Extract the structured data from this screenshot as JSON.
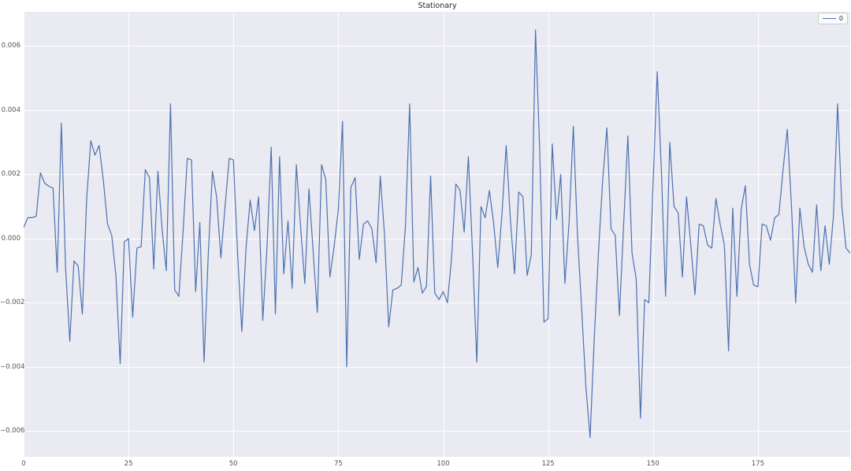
{
  "chart_data": {
    "type": "line",
    "title": "Stationary",
    "xlabel": "",
    "ylabel": "",
    "grid": true,
    "legend": {
      "position": "upper right",
      "entries": [
        {
          "label": "0",
          "color": "#4c72b0"
        }
      ]
    },
    "colors": {
      "figure_background": "#ffffff",
      "axes_background": "#eaeaf2",
      "grid_color": "#ffffff",
      "line_color": "#4c72b0",
      "title_color": "#262626",
      "tick_color": "#555555"
    },
    "xlim": [
      0,
      197
    ],
    "ylim": [
      -0.0068,
      0.007066
    ],
    "x_ticks": [
      0,
      25,
      50,
      75,
      100,
      125,
      150,
      175
    ],
    "y_ticks": [
      0.006,
      0.004,
      0.002,
      0.0,
      -0.002,
      -0.004,
      -0.006
    ],
    "y_tick_labels": [
      "0.006",
      "0.004",
      "0.002",
      "0.000",
      "−0.002",
      "−0.004",
      "−0.006"
    ],
    "x_start": 0,
    "series": [
      {
        "name": "0",
        "color": "#4c72b0",
        "values": [
          0.00035,
          0.00065,
          0.00065,
          0.0007,
          0.00205,
          0.00173,
          0.00163,
          0.00157,
          -0.00105,
          0.0036,
          -0.0009,
          -0.0032,
          -0.0007,
          -0.00085,
          -0.00235,
          0.0012,
          0.00305,
          0.0026,
          0.0029,
          0.0018,
          0.00045,
          0.0001,
          -0.00115,
          -0.0039,
          -0.0001,
          0.0,
          -0.00245,
          -0.0003,
          -0.00025,
          0.00215,
          0.0019,
          -0.00095,
          0.0021,
          0.0003,
          -0.001,
          0.0042,
          -0.0016,
          -0.0018,
          0.0002,
          0.0025,
          0.00245,
          -0.00165,
          0.0005,
          -0.00385,
          -0.0005,
          0.0021,
          0.0013,
          -0.0006,
          0.001,
          0.0025,
          0.00245,
          -0.0005,
          -0.0029,
          -0.0003,
          0.0012,
          0.00025,
          0.0013,
          -0.00255,
          -0.0003,
          0.00285,
          -0.00235,
          0.00255,
          -0.0011,
          0.00055,
          -0.00155,
          0.0023,
          0.0004,
          -0.0014,
          0.00155,
          -0.0004,
          -0.0023,
          0.0023,
          0.00185,
          -0.0012,
          -0.00025,
          0.0009,
          0.00365,
          -0.004,
          0.0016,
          0.0019,
          -0.00065,
          0.00045,
          0.00055,
          0.0003,
          -0.00075,
          0.00195,
          0.00015,
          -0.00275,
          -0.0016,
          -0.00155,
          -0.00145,
          0.0004,
          0.0042,
          -0.00135,
          -0.0009,
          -0.0017,
          -0.0015,
          0.00195,
          -0.0017,
          -0.0019,
          -0.00165,
          -0.002,
          -0.0006,
          0.0017,
          0.0015,
          0.0002,
          0.00255,
          -0.0005,
          -0.00385,
          0.001,
          0.00065,
          0.0015,
          0.0005,
          -0.0009,
          0.00075,
          0.0029,
          0.0006,
          -0.0011,
          0.00145,
          0.0013,
          -0.00115,
          -0.0005,
          0.0065,
          0.0027,
          -0.0026,
          -0.0025,
          0.00295,
          0.0006,
          0.002,
          -0.0014,
          0.0005,
          0.0035,
          0.0001,
          -0.0022,
          -0.0046,
          -0.0062,
          -0.0031,
          -0.00045,
          0.0018,
          0.00345,
          0.0003,
          0.0001,
          -0.0024,
          0.00045,
          0.0032,
          -0.00045,
          -0.00125,
          -0.0056,
          -0.0019,
          -0.002,
          0.0016,
          0.0052,
          0.0021,
          -0.0018,
          0.003,
          0.001,
          0.0008,
          -0.0012,
          0.0013,
          -0.0002,
          -0.00175,
          0.00045,
          0.0004,
          -0.0002,
          -0.0003,
          0.00125,
          0.00045,
          -0.0002,
          -0.0035,
          0.00095,
          -0.0018,
          0.0009,
          0.00165,
          -0.0008,
          -0.00145,
          -0.0015,
          0.00045,
          0.0004,
          -5e-05,
          0.00065,
          0.00075,
          0.00215,
          0.0034,
          0.001,
          -0.002,
          0.00095,
          -0.00025,
          -0.0008,
          -0.00105,
          0.00105,
          -0.001,
          0.0004,
          -0.0008,
          0.0007,
          0.0042,
          0.001,
          -0.0003,
          -0.00045
        ]
      }
    ]
  }
}
